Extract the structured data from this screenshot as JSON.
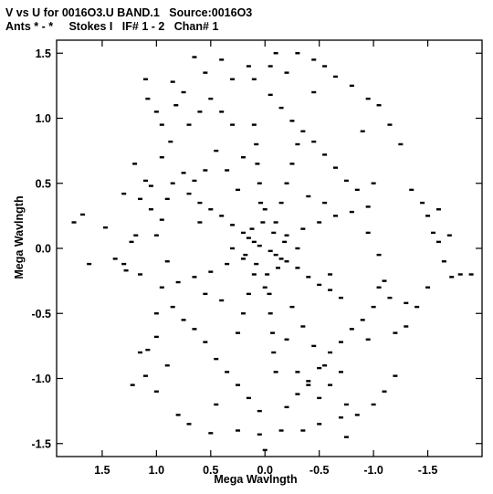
{
  "chart_data": {
    "type": "scatter",
    "title_line1": "V vs U for 0016O3.U BAND.1   Source:0016O3",
    "title_line2": "Ants * - *     Stokes I   IF# 1 - 2   Chan# 1",
    "xlabel": "Mega Wavlngth",
    "ylabel": "Mega Wavlngth",
    "x_reversed": true,
    "xlim": [
      1.92,
      -2.0
    ],
    "ylim": [
      -1.6,
      1.6
    ],
    "x_ticks": [
      1.5,
      1.0,
      0.5,
      0.0,
      -0.5,
      -1.0,
      -1.5
    ],
    "x_tick_labels": [
      "1.5",
      "1.0",
      "0.5",
      "0.0",
      "-0.5",
      "-1.0",
      "-1.5"
    ],
    "y_ticks": [
      1.5,
      1.0,
      0.5,
      0.0,
      -0.5,
      -1.0,
      -1.5
    ],
    "y_tick_labels": [
      "1.5",
      "1.0",
      "0.5",
      "0.0",
      "-0.5",
      "-1.0",
      "-1.5"
    ],
    "grid": false,
    "marker_color": "#000000",
    "points": [
      [
        1.76,
        0.2
      ],
      [
        1.68,
        0.26
      ],
      [
        1.62,
        -0.12
      ],
      [
        1.47,
        0.16
      ],
      [
        1.38,
        -0.08
      ],
      [
        1.3,
        -0.12
      ],
      [
        1.23,
        0.05
      ],
      [
        1.19,
        0.1
      ],
      [
        1.28,
        -0.17
      ],
      [
        1.15,
        -0.2
      ],
      [
        1.1,
        0.52
      ],
      [
        1.05,
        0.48
      ],
      [
        1.22,
        -1.05
      ],
      [
        1.15,
        -0.8
      ],
      [
        1.1,
        -0.98
      ],
      [
        1.08,
        -0.78
      ],
      [
        1.0,
        -0.68
      ],
      [
        1.0,
        -1.1
      ],
      [
        1.1,
        1.3
      ],
      [
        1.08,
        1.15
      ],
      [
        1.0,
        1.05
      ],
      [
        0.95,
        0.95
      ],
      [
        0.87,
        0.82
      ],
      [
        0.82,
        1.1
      ],
      [
        0.85,
        1.28
      ],
      [
        0.8,
        -1.28
      ],
      [
        0.7,
        -1.35
      ],
      [
        0.65,
        1.47
      ],
      [
        0.55,
        1.35
      ],
      [
        0.5,
        -1.42
      ],
      [
        0.4,
        1.45
      ],
      [
        0.3,
        1.3
      ],
      [
        0.25,
        -1.4
      ],
      [
        0.1,
        1.3
      ],
      [
        0.05,
        -1.43
      ],
      [
        0.0,
        -1.55
      ],
      [
        -0.05,
        1.4
      ],
      [
        -0.1,
        1.5
      ],
      [
        -0.2,
        1.35
      ],
      [
        -0.3,
        1.5
      ],
      [
        -0.35,
        -1.4
      ],
      [
        -0.45,
        1.45
      ],
      [
        -0.5,
        -1.35
      ],
      [
        -0.55,
        1.4
      ],
      [
        -0.65,
        1.32
      ],
      [
        -0.7,
        -1.3
      ],
      [
        -0.75,
        -1.45
      ],
      [
        -0.8,
        1.25
      ],
      [
        -0.85,
        -1.28
      ],
      [
        -0.95,
        1.15
      ],
      [
        -1.0,
        -1.2
      ],
      [
        -1.05,
        1.1
      ],
      [
        -1.1,
        -1.1
      ],
      [
        -1.15,
        0.95
      ],
      [
        -1.2,
        -0.98
      ],
      [
        -1.25,
        0.8
      ],
      [
        -1.3,
        -0.6
      ],
      [
        -1.35,
        0.45
      ],
      [
        -1.4,
        -0.45
      ],
      [
        -1.45,
        0.35
      ],
      [
        -1.5,
        -0.3
      ],
      [
        -1.55,
        0.12
      ],
      [
        -1.6,
        0.05
      ],
      [
        -1.65,
        -0.1
      ],
      [
        -1.72,
        -0.22
      ],
      [
        -1.8,
        -0.2
      ],
      [
        -1.9,
        -0.2
      ],
      [
        -1.6,
        0.3
      ],
      [
        -1.5,
        0.25
      ],
      [
        -1.7,
        0.1
      ],
      [
        0.05,
        0.02
      ],
      [
        0.1,
        0.05
      ],
      [
        0.15,
        0.08
      ],
      [
        -0.05,
        -0.02
      ],
      [
        -0.1,
        -0.05
      ],
      [
        -0.15,
        -0.08
      ],
      [
        0.2,
        0.12
      ],
      [
        0.3,
        0.18
      ],
      [
        0.4,
        0.25
      ],
      [
        0.5,
        0.3
      ],
      [
        0.6,
        0.35
      ],
      [
        0.7,
        0.42
      ],
      [
        -0.2,
        -0.1
      ],
      [
        -0.3,
        -0.15
      ],
      [
        -0.4,
        -0.22
      ],
      [
        -0.5,
        -0.28
      ],
      [
        -0.6,
        -0.32
      ],
      [
        -0.7,
        -0.38
      ],
      [
        -0.2,
        0.1
      ],
      [
        -0.35,
        0.15
      ],
      [
        -0.5,
        0.2
      ],
      [
        -0.65,
        0.25
      ],
      [
        -0.8,
        0.28
      ],
      [
        -0.95,
        0.32
      ],
      [
        0.2,
        -0.08
      ],
      [
        0.35,
        -0.12
      ],
      [
        0.5,
        -0.18
      ],
      [
        0.65,
        -0.22
      ],
      [
        0.8,
        -0.26
      ],
      [
        0.95,
        -0.3
      ],
      [
        0.02,
        0.2
      ],
      [
        0.04,
        0.35
      ],
      [
        0.05,
        0.5
      ],
      [
        0.07,
        0.65
      ],
      [
        0.08,
        0.8
      ],
      [
        0.1,
        0.95
      ],
      [
        -0.02,
        -0.2
      ],
      [
        -0.04,
        -0.35
      ],
      [
        -0.05,
        -0.5
      ],
      [
        -0.07,
        -0.65
      ],
      [
        -0.08,
        -0.8
      ],
      [
        -0.1,
        -0.95
      ],
      [
        0.1,
        -0.2
      ],
      [
        0.15,
        -0.35
      ],
      [
        0.2,
        -0.5
      ],
      [
        0.25,
        -0.65
      ],
      [
        -0.1,
        0.2
      ],
      [
        -0.15,
        0.35
      ],
      [
        -0.2,
        0.5
      ],
      [
        -0.25,
        0.65
      ],
      [
        -0.3,
        0.8
      ],
      [
        0.25,
        0.45
      ],
      [
        0.35,
        0.6
      ],
      [
        0.45,
        0.75
      ],
      [
        -0.25,
        -0.45
      ],
      [
        -0.35,
        -0.6
      ],
      [
        -0.45,
        -0.75
      ],
      [
        -0.55,
        -0.9
      ],
      [
        0.55,
        0.6
      ],
      [
        0.65,
        0.52
      ],
      [
        0.75,
        0.58
      ],
      [
        0.85,
        0.5
      ],
      [
        0.9,
        0.38
      ],
      [
        0.95,
        0.22
      ],
      [
        1.0,
        0.1
      ],
      [
        0.9,
        -0.1
      ],
      [
        0.85,
        -0.45
      ],
      [
        0.75,
        -0.55
      ],
      [
        0.65,
        -0.62
      ],
      [
        0.55,
        -0.72
      ],
      [
        0.45,
        -0.85
      ],
      [
        0.35,
        -0.95
      ],
      [
        0.25,
        -1.05
      ],
      [
        0.15,
        -1.15
      ],
      [
        0.05,
        -1.25
      ],
      [
        -0.05,
        1.18
      ],
      [
        -0.15,
        1.08
      ],
      [
        -0.25,
        0.98
      ],
      [
        -0.35,
        0.9
      ],
      [
        -0.45,
        0.82
      ],
      [
        -0.55,
        0.72
      ],
      [
        -0.65,
        0.62
      ],
      [
        -0.75,
        0.52
      ],
      [
        -0.85,
        0.45
      ],
      [
        -0.95,
        0.12
      ],
      [
        -1.05,
        -0.05
      ],
      [
        -1.1,
        -0.25
      ],
      [
        -1.0,
        -0.45
      ],
      [
        -0.9,
        -0.55
      ],
      [
        -0.8,
        -0.62
      ],
      [
        -0.7,
        -0.72
      ],
      [
        -0.6,
        -0.8
      ],
      [
        -0.5,
        -0.92
      ],
      [
        -0.4,
        -1.02
      ],
      [
        -0.3,
        -1.12
      ],
      [
        -0.2,
        -1.22
      ],
      [
        0.6,
        1.05
      ],
      [
        0.7,
        0.95
      ],
      [
        0.5,
        1.15
      ],
      [
        0.4,
        1.05
      ],
      [
        0.3,
        0.95
      ],
      [
        -0.6,
        -1.05
      ],
      [
        -0.7,
        -0.95
      ],
      [
        -0.5,
        -1.15
      ],
      [
        -0.4,
        -1.05
      ],
      [
        -0.3,
        -0.95
      ],
      [
        0.95,
        0.7
      ],
      [
        -0.95,
        -0.7
      ],
      [
        1.05,
        0.3
      ],
      [
        -1.05,
        -0.3
      ],
      [
        1.15,
        0.38
      ],
      [
        -1.15,
        -0.38
      ],
      [
        0.6,
        0.2
      ],
      [
        -0.6,
        -0.2
      ],
      [
        0.4,
        -0.4
      ],
      [
        -0.4,
        0.4
      ],
      [
        0.3,
        0.0
      ],
      [
        -0.3,
        0.0
      ],
      [
        0.0,
        0.3
      ],
      [
        0.0,
        -0.3
      ],
      [
        0.12,
        0.15
      ],
      [
        -0.12,
        -0.15
      ],
      [
        0.18,
        -0.05
      ],
      [
        -0.18,
        0.05
      ],
      [
        0.08,
        -0.12
      ],
      [
        -0.08,
        0.12
      ],
      [
        1.2,
        0.65
      ],
      [
        -1.2,
        -0.65
      ],
      [
        1.3,
        0.42
      ],
      [
        -1.3,
        -0.42
      ],
      [
        0.75,
        1.2
      ],
      [
        -0.75,
        -1.2
      ],
      [
        0.15,
        1.4
      ],
      [
        -0.15,
        -1.4
      ],
      [
        0.45,
        -1.2
      ],
      [
        -0.45,
        1.2
      ],
      [
        0.9,
        -0.9
      ],
      [
        -0.9,
        0.9
      ],
      [
        1.0,
        -0.5
      ],
      [
        -1.0,
        0.5
      ],
      [
        0.2,
        0.7
      ],
      [
        -0.2,
        -0.7
      ],
      [
        0.55,
        -0.35
      ],
      [
        -0.55,
        0.35
      ]
    ]
  }
}
